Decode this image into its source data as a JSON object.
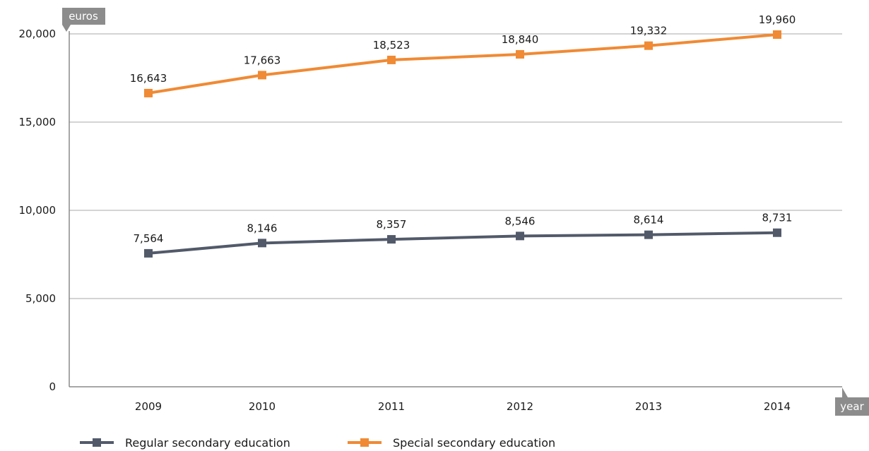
{
  "chart_data": {
    "type": "line",
    "y_unit_label": "euros",
    "x_unit_label": "year",
    "x": [
      "2009",
      "2010",
      "2011",
      "2012",
      "2013",
      "2014"
    ],
    "yticks": [
      0,
      5000,
      10000,
      15000,
      20000
    ],
    "ylim": [
      0,
      20000
    ],
    "grid": true,
    "legend_position": "bottom-left",
    "series": [
      {
        "name": "Regular secondary education",
        "color": "#525a6a",
        "values": [
          7564,
          8146,
          8357,
          8546,
          8614,
          8731
        ],
        "labels": [
          "7,564",
          "8,146",
          "8,357",
          "8,546",
          "8,614",
          "8,731"
        ]
      },
      {
        "name": "Special secondary education",
        "color": "#f08a34",
        "values": [
          16643,
          17663,
          18523,
          18840,
          19332,
          19960
        ],
        "labels": [
          "16,643",
          "17,663",
          "18,523",
          "18,840",
          "19,332",
          "19,960"
        ]
      }
    ]
  }
}
